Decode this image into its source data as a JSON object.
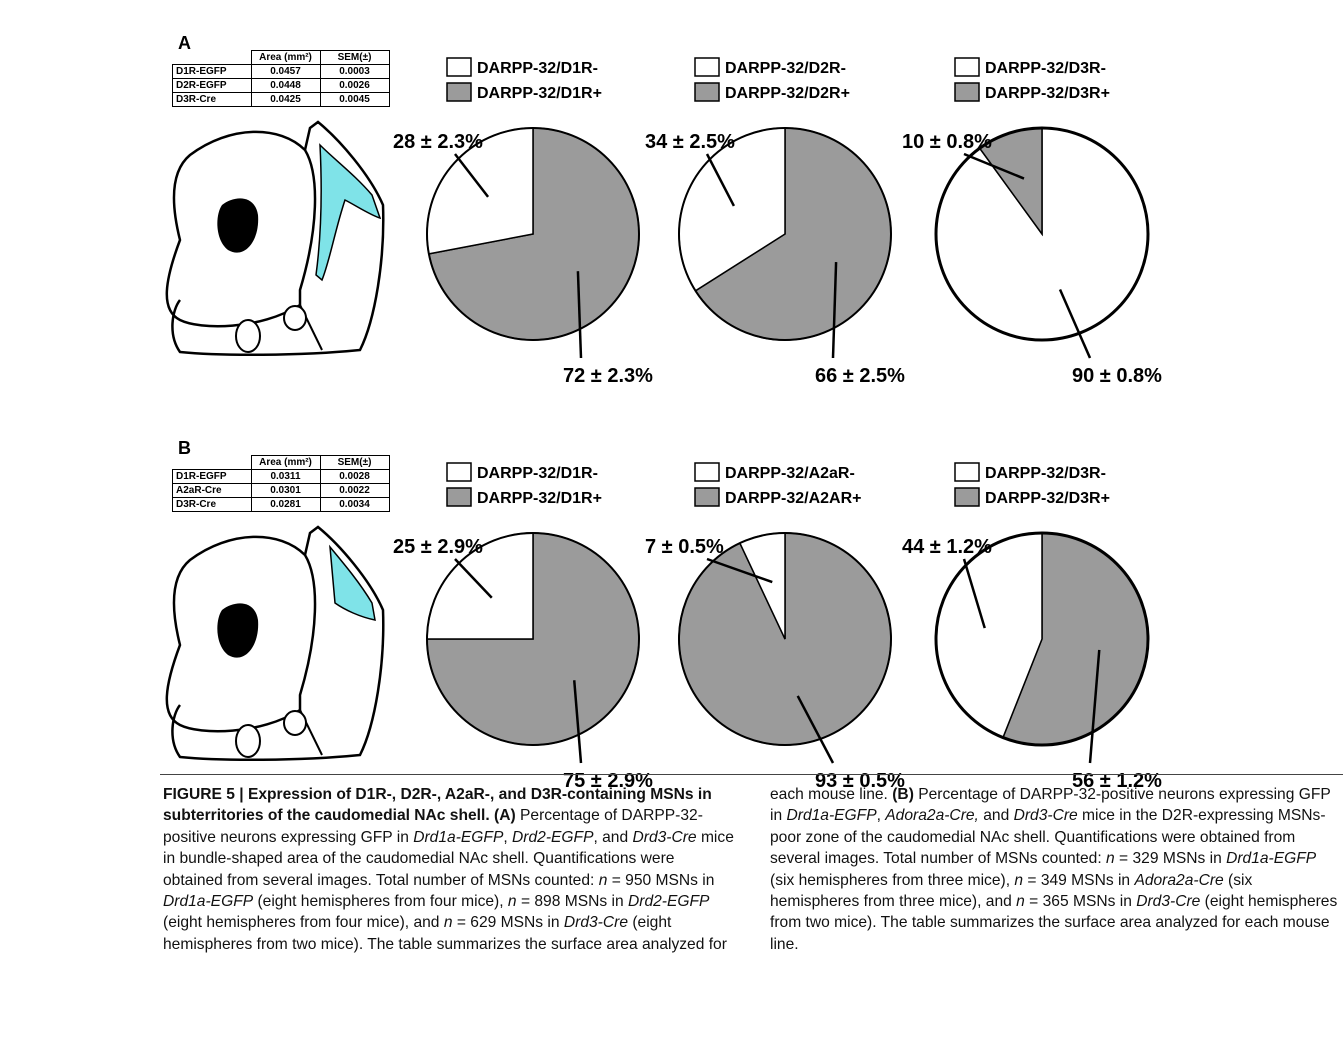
{
  "panels": [
    {
      "label": "A",
      "table": {
        "columns": [
          "Area (mm²)",
          "SEM(±)"
        ],
        "rows": [
          [
            "D1R-EGFP",
            "0.0457",
            "0.0003"
          ],
          [
            "D2R-EGFP",
            "0.0448",
            "0.0026"
          ],
          [
            "D3R-Cre",
            "0.0425",
            "0.0045"
          ]
        ]
      }
    },
    {
      "label": "B",
      "table": {
        "columns": [
          "Area (mm²)",
          "SEM(±)"
        ],
        "rows": [
          [
            "D1R-EGFP",
            "0.0311",
            "0.0028"
          ],
          [
            "A2aR-Cre",
            "0.0301",
            "0.0022"
          ],
          [
            "D3R-Cre",
            "0.0281",
            "0.0034"
          ]
        ]
      }
    }
  ],
  "chart_data": [
    {
      "type": "pie",
      "categories": [
        "DARPP-32/D1R-",
        "DARPP-32/D1R+"
      ],
      "values": [
        28,
        72
      ],
      "errors": [
        2.3,
        2.3
      ],
      "value_labels": [
        "28 ± 2.3%",
        "72 ± 2.3%"
      ],
      "colors": [
        "#ffffff",
        "#9b9b9b"
      ]
    },
    {
      "type": "pie",
      "categories": [
        "DARPP-32/D2R-",
        "DARPP-32/D2R+"
      ],
      "values": [
        34,
        66
      ],
      "errors": [
        2.5,
        2.5
      ],
      "value_labels": [
        "34 ± 2.5%",
        "66 ± 2.5%"
      ],
      "colors": [
        "#ffffff",
        "#9b9b9b"
      ]
    },
    {
      "type": "pie",
      "categories": [
        "DARPP-32/D3R-",
        "DARPP-32/D3R+"
      ],
      "values": [
        90,
        10
      ],
      "errors": [
        0.8,
        0.8
      ],
      "value_labels": [
        "90 ± 0.8%",
        "10 ± 0.8%"
      ],
      "colors": [
        "#ffffff",
        "#9b9b9b"
      ]
    },
    {
      "type": "pie",
      "categories": [
        "DARPP-32/D1R-",
        "DARPP-32/D1R+"
      ],
      "values": [
        25,
        75
      ],
      "errors": [
        2.9,
        2.9
      ],
      "value_labels": [
        "25 ± 2.9%",
        "75 ± 2.9%"
      ],
      "colors": [
        "#ffffff",
        "#9b9b9b"
      ]
    },
    {
      "type": "pie",
      "categories": [
        "DARPP-32/A2aR-",
        "DARPP-32/A2AR+"
      ],
      "values": [
        7,
        93
      ],
      "errors": [
        0.5,
        0.5
      ],
      "value_labels": [
        "7 ± 0.5%",
        "93 ± 0.5%"
      ],
      "colors": [
        "#ffffff",
        "#9b9b9b"
      ]
    },
    {
      "type": "pie",
      "categories": [
        "DARPP-32/D3R-",
        "DARPP-32/D3R+"
      ],
      "values": [
        44,
        56
      ],
      "errors": [
        1.2,
        1.2
      ],
      "value_labels": [
        "44 ± 1.2%",
        "56 ± 1.2%"
      ],
      "colors": [
        "#ffffff",
        "#9b9b9b"
      ]
    }
  ],
  "caption": [
    {
      "text": "FIGURE 5 | Expression of D1R-, D2R-, A2aR-, and D3R-containing MSNs in subterritories of the caudomedial NAc shell. (A)",
      "style": "b"
    },
    {
      "text": " Percentage of DARPP-32-positive neurons expressing GFP in "
    },
    {
      "text": "Drd1a-EGFP",
      "style": "i"
    },
    {
      "text": ", "
    },
    {
      "text": "Drd2-EGFP",
      "style": "i"
    },
    {
      "text": ", and "
    },
    {
      "text": "Drd3-Cre",
      "style": "i"
    },
    {
      "text": " mice in bundle-shaped area of the caudomedial NAc shell. Quantifications were obtained from several images. Total number of MSNs counted: "
    },
    {
      "text": "n",
      "style": "i"
    },
    {
      "text": " = 950 MSNs in "
    },
    {
      "text": "Drd1a-EGFP",
      "style": "i"
    },
    {
      "text": " (eight hemispheres from four mice), "
    },
    {
      "text": "n",
      "style": "i"
    },
    {
      "text": " = 898 MSNs in "
    },
    {
      "text": "Drd2-EGFP",
      "style": "i"
    },
    {
      "text": " (eight hemispheres from four mice), and "
    },
    {
      "text": "n",
      "style": "i"
    },
    {
      "text": " = 629 MSNs in "
    },
    {
      "text": "Drd3-Cre",
      "style": "i"
    },
    {
      "text": " (eight hemispheres from two mice). The table summarizes the surface area analyzed for each mouse line. "
    },
    {
      "text": "(B)",
      "style": "b"
    },
    {
      "text": " Percentage of DARPP-32-positive neurons expressing GFP in "
    },
    {
      "text": "Drd1a-EGFP",
      "style": "i"
    },
    {
      "text": ", "
    },
    {
      "text": "Adora2a-Cre,",
      "style": "i"
    },
    {
      "text": " and "
    },
    {
      "text": "Drd3-Cre",
      "style": "i"
    },
    {
      "text": " mice in the D2R-expressing MSNs-poor zone of the caudomedial NAc shell. Quantifications were obtained from several images. Total number of MSNs counted: "
    },
    {
      "text": "n",
      "style": "i"
    },
    {
      "text": " = 329 MSNs in "
    },
    {
      "text": "Drd1a-EGFP",
      "style": "i"
    },
    {
      "text": " (six hemispheres from three mice), "
    },
    {
      "text": "n",
      "style": "i"
    },
    {
      "text": " = 349 MSNs in "
    },
    {
      "text": "Adora2a-Cre",
      "style": "i"
    },
    {
      "text": " (six hemispheres from three mice), and "
    },
    {
      "text": "n",
      "style": "i"
    },
    {
      "text": " = 365 MSNs in "
    },
    {
      "text": "Drd3-Cre",
      "style": "i"
    },
    {
      "text": " (eight hemispheres from two mice). The table summarizes the surface area analyzed for each mouse line."
    }
  ]
}
